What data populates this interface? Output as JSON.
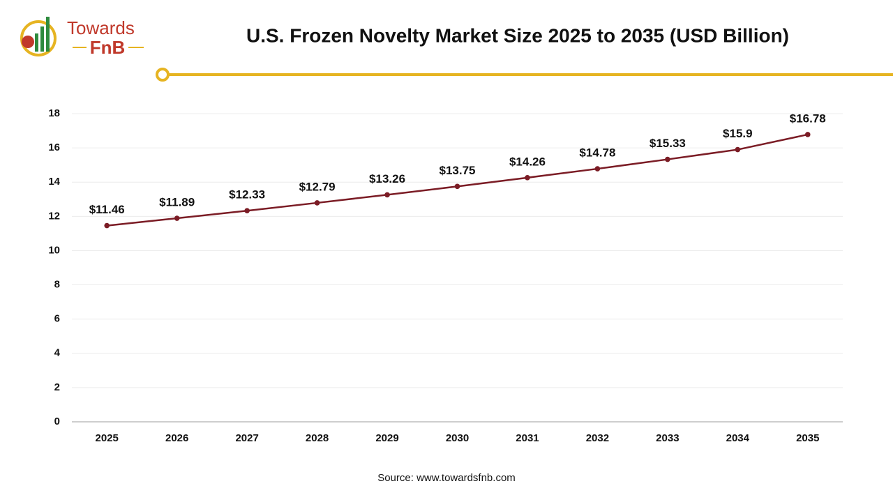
{
  "logo": {
    "line1": "Towards",
    "line2": "FnB"
  },
  "source": "Source: www.towardsfnb.com",
  "chart_data": {
    "type": "line",
    "title": "U.S. Frozen Novelty Market Size 2025 to 2035 (USD Billion)",
    "categories": [
      "2025",
      "2026",
      "2027",
      "2028",
      "2029",
      "2030",
      "2031",
      "2032",
      "2033",
      "2034",
      "2035"
    ],
    "values": [
      11.46,
      11.89,
      12.33,
      12.79,
      13.26,
      13.75,
      14.26,
      14.78,
      15.33,
      15.9,
      16.78
    ],
    "value_labels": [
      "$11.46",
      "$11.89",
      "$12.33",
      "$12.79",
      "$13.26",
      "$13.75",
      "$14.26",
      "$14.78",
      "$15.33",
      "$15.9",
      "$16.78"
    ],
    "color": "#7b1c25",
    "ylim": [
      0,
      18
    ],
    "yticks": [
      0,
      2,
      4,
      6,
      8,
      10,
      12,
      14,
      16,
      18
    ],
    "grid": true
  }
}
